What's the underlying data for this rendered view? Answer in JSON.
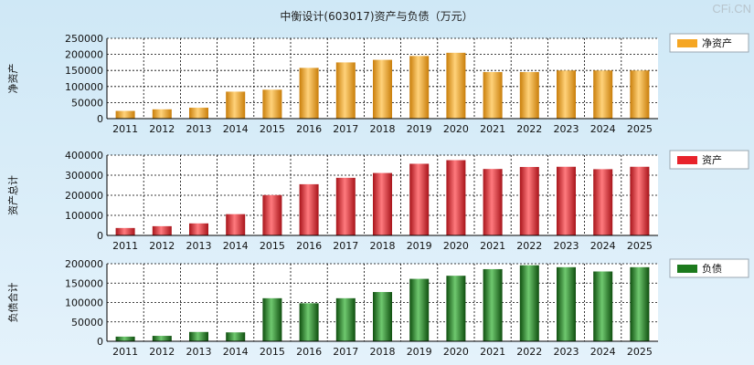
{
  "title": "中衡设计(603017)资产与负债（万元）",
  "watermark": "CFi.CN",
  "chart_data": [
    {
      "type": "bar",
      "ylabel": "净资产",
      "legend": "净资产",
      "color": "#f5a623",
      "categories": [
        "2011",
        "2012",
        "2013",
        "2014",
        "2015",
        "2016",
        "2017",
        "2018",
        "2019",
        "2020",
        "2021",
        "2022",
        "2023",
        "2024",
        "2025"
      ],
      "values": [
        24000,
        29000,
        34000,
        84000,
        90000,
        158000,
        175000,
        183000,
        195000,
        205000,
        145000,
        145000,
        150000,
        150000,
        150000
      ],
      "ylim": [
        0,
        250000
      ],
      "yticks": [
        "0",
        "50000",
        "100000",
        "150000",
        "200000",
        "250000"
      ]
    },
    {
      "type": "bar",
      "ylabel": "资产总计",
      "legend": "资产",
      "color": "#e8232b",
      "categories": [
        "2011",
        "2012",
        "2013",
        "2014",
        "2015",
        "2016",
        "2017",
        "2018",
        "2019",
        "2020",
        "2021",
        "2022",
        "2023",
        "2024",
        "2025"
      ],
      "values": [
        37000,
        46000,
        60000,
        106000,
        201000,
        255000,
        287000,
        311000,
        357000,
        375000,
        331000,
        341000,
        342000,
        330000,
        342000
      ],
      "ylim": [
        0,
        400000
      ],
      "yticks": [
        "0",
        "100000",
        "200000",
        "300000",
        "400000"
      ]
    },
    {
      "type": "bar",
      "ylabel": "负债合计",
      "legend": "负债",
      "color": "#1d7a1d",
      "categories": [
        "2011",
        "2012",
        "2013",
        "2014",
        "2015",
        "2016",
        "2017",
        "2018",
        "2019",
        "2020",
        "2021",
        "2022",
        "2023",
        "2024",
        "2025"
      ],
      "values": [
        12000,
        14000,
        24000,
        23000,
        111000,
        98000,
        111000,
        127000,
        161000,
        169000,
        186000,
        196000,
        191000,
        180000,
        191000
      ],
      "ylim": [
        0,
        200000
      ],
      "yticks": [
        "0",
        "50000",
        "100000",
        "150000",
        "200000"
      ]
    }
  ]
}
